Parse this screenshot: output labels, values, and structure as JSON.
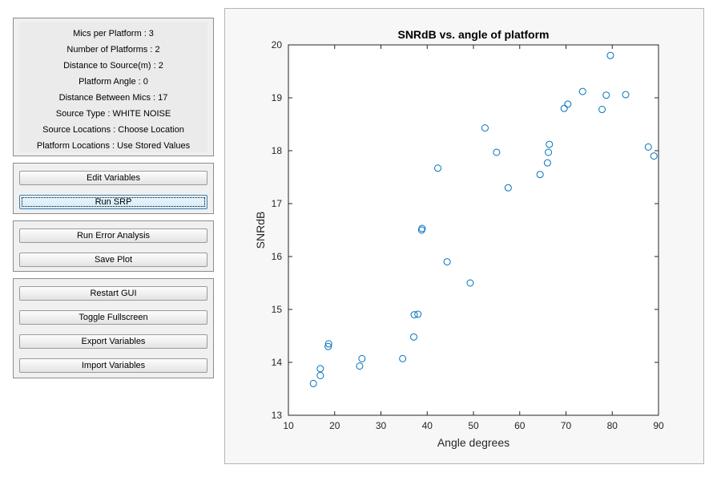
{
  "info": {
    "lines": [
      "Mics per Platform : 3",
      "Number of Platforms : 2",
      "Distance to Source(m) : 2",
      "Platform Angle : 0",
      "Distance Between Mics : 17",
      "Source Type : WHITE NOISE",
      "Source Locations : Choose Location",
      "Platform Locations : Use Stored Values"
    ]
  },
  "buttons": {
    "edit_variables": "Edit Variables",
    "run_srp": "Run SRP",
    "run_error_analysis": "Run Error Analysis",
    "save_plot": "Save Plot",
    "restart_gui": "Restart GUI",
    "toggle_fullscreen": "Toggle Fullscreen",
    "export_variables": "Export Variables",
    "import_variables": "Import Variables"
  },
  "colors": {
    "marker": "#0072bd",
    "axes_bg": "#ffffff",
    "panel_bg": "#f0f0f0"
  },
  "chart_data": {
    "type": "scatter",
    "title": "SNRdB vs. angle of platform",
    "xlabel": "Angle degrees",
    "ylabel": "SNRdB",
    "xlim": [
      10,
      90
    ],
    "ylim": [
      13,
      20
    ],
    "xticks": [
      10,
      20,
      30,
      40,
      50,
      60,
      70,
      80,
      90
    ],
    "yticks": [
      13,
      14,
      15,
      16,
      17,
      18,
      19,
      20
    ],
    "grid": false,
    "marker": "open-circle",
    "points": [
      [
        15.4,
        13.6
      ],
      [
        16.9,
        13.75
      ],
      [
        16.9,
        13.88
      ],
      [
        18.6,
        14.3
      ],
      [
        18.7,
        14.35
      ],
      [
        25.4,
        13.93
      ],
      [
        25.9,
        14.07
      ],
      [
        34.7,
        14.07
      ],
      [
        37.1,
        14.48
      ],
      [
        37.2,
        14.9
      ],
      [
        38.0,
        14.91
      ],
      [
        38.8,
        16.5
      ],
      [
        38.9,
        16.53
      ],
      [
        42.3,
        17.67
      ],
      [
        44.3,
        15.9
      ],
      [
        49.3,
        15.5
      ],
      [
        52.5,
        18.43
      ],
      [
        55.0,
        17.97
      ],
      [
        57.5,
        17.3
      ],
      [
        64.4,
        17.55
      ],
      [
        66.0,
        17.77
      ],
      [
        66.2,
        17.97
      ],
      [
        66.4,
        18.12
      ],
      [
        69.6,
        18.8
      ],
      [
        70.4,
        18.88
      ],
      [
        73.6,
        19.12
      ],
      [
        77.8,
        18.78
      ],
      [
        78.7,
        19.05
      ],
      [
        79.6,
        19.8
      ],
      [
        82.9,
        19.06
      ],
      [
        87.8,
        18.07
      ],
      [
        89.0,
        17.9
      ]
    ]
  }
}
